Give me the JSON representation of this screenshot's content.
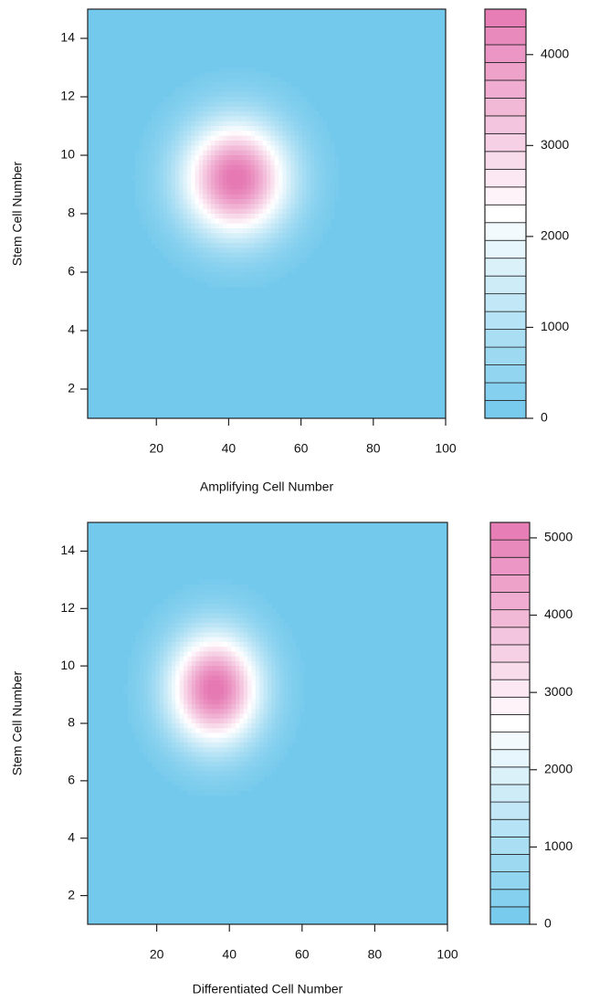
{
  "colors": {
    "low": "#73c9ec",
    "mid": "#ffffff",
    "high": "#e679b3",
    "axis": "#222222"
  },
  "chart_data": [
    {
      "type": "heatmap",
      "title": "",
      "xlabel": "Amplifying Cell Number",
      "ylabel": "Stem Cell Number",
      "xlim": [
        1,
        100
      ],
      "ylim": [
        1,
        15
      ],
      "xticks": [
        20,
        40,
        60,
        80,
        100
      ],
      "yticks": [
        2,
        4,
        6,
        8,
        10,
        12,
        14
      ],
      "peak": {
        "x": 42,
        "y": 9.2
      },
      "spread": {
        "x": 15,
        "y": 2.0
      },
      "zmax": 4500,
      "colorbar": {
        "ticks": [
          0,
          1000,
          2000,
          3000,
          4000
        ],
        "levels": 23,
        "range": [
          0,
          4500
        ]
      }
    },
    {
      "type": "heatmap",
      "title": "",
      "xlabel": "Differentiated Cell Number",
      "ylabel": "Stem Cell Number",
      "xlim": [
        1,
        100
      ],
      "ylim": [
        1,
        15
      ],
      "xticks": [
        20,
        40,
        60,
        80,
        100
      ],
      "yticks": [
        2,
        4,
        6,
        8,
        10,
        12,
        14
      ],
      "peak": {
        "x": 36,
        "y": 9.2
      },
      "spread": {
        "x": 13,
        "y": 2.0
      },
      "zmax": 5200,
      "colorbar": {
        "ticks": [
          0,
          1000,
          2000,
          3000,
          4000,
          5000
        ],
        "levels": 23,
        "range": [
          0,
          5200
        ]
      }
    }
  ]
}
